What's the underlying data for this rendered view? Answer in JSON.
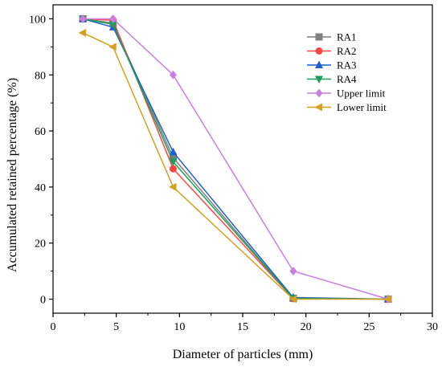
{
  "chart_data": {
    "type": "line",
    "xlabel": "Diameter of particles (mm)",
    "ylabel": "Accumulated retained percentage (%)",
    "xlim": [
      0,
      30
    ],
    "ylim": [
      -5,
      105
    ],
    "xticks": [
      0,
      5,
      10,
      15,
      20,
      25,
      30
    ],
    "yticks": [
      0,
      20,
      40,
      60,
      80,
      100
    ],
    "x_tick_labels": [
      "0",
      "5",
      "10",
      "15",
      "20",
      "25",
      "30"
    ],
    "y_tick_labels": [
      "0",
      "20",
      "40",
      "60",
      "80",
      "100"
    ],
    "grid": false,
    "legend_position": "top-right",
    "series": [
      {
        "name": "RA1",
        "color": "#7f7f7f",
        "marker": "square",
        "x": [
          2.36,
          4.75,
          9.5,
          19,
          26.5
        ],
        "y": [
          100,
          98.5,
          50.5,
          0.3,
          0
        ]
      },
      {
        "name": "RA2",
        "color": "#ff4444",
        "marker": "circle",
        "x": [
          2.36,
          4.75,
          9.5,
          19,
          26.5
        ],
        "y": [
          100,
          99.5,
          46.5,
          0.2,
          0
        ]
      },
      {
        "name": "RA3",
        "color": "#1f5fd0",
        "marker": "triangle-up",
        "x": [
          2.36,
          4.75,
          9.5,
          19,
          26.5
        ],
        "y": [
          100,
          97,
          52.5,
          0.6,
          0
        ]
      },
      {
        "name": "RA4",
        "color": "#1aa05a",
        "marker": "triangle-down",
        "x": [
          2.36,
          4.75,
          9.5,
          19,
          26.5
        ],
        "y": [
          100,
          98,
          49,
          0.3,
          0
        ]
      },
      {
        "name": "Upper limit",
        "color": "#c97ee0",
        "marker": "diamond",
        "x": [
          2.36,
          4.75,
          9.5,
          19,
          26.5
        ],
        "y": [
          100,
          100,
          80,
          10,
          0
        ]
      },
      {
        "name": "Lower limit",
        "color": "#d4a020",
        "marker": "triangle-left",
        "x": [
          2.36,
          4.75,
          9.5,
          19,
          26.5
        ],
        "y": [
          95,
          90,
          40,
          0,
          0
        ]
      }
    ]
  }
}
